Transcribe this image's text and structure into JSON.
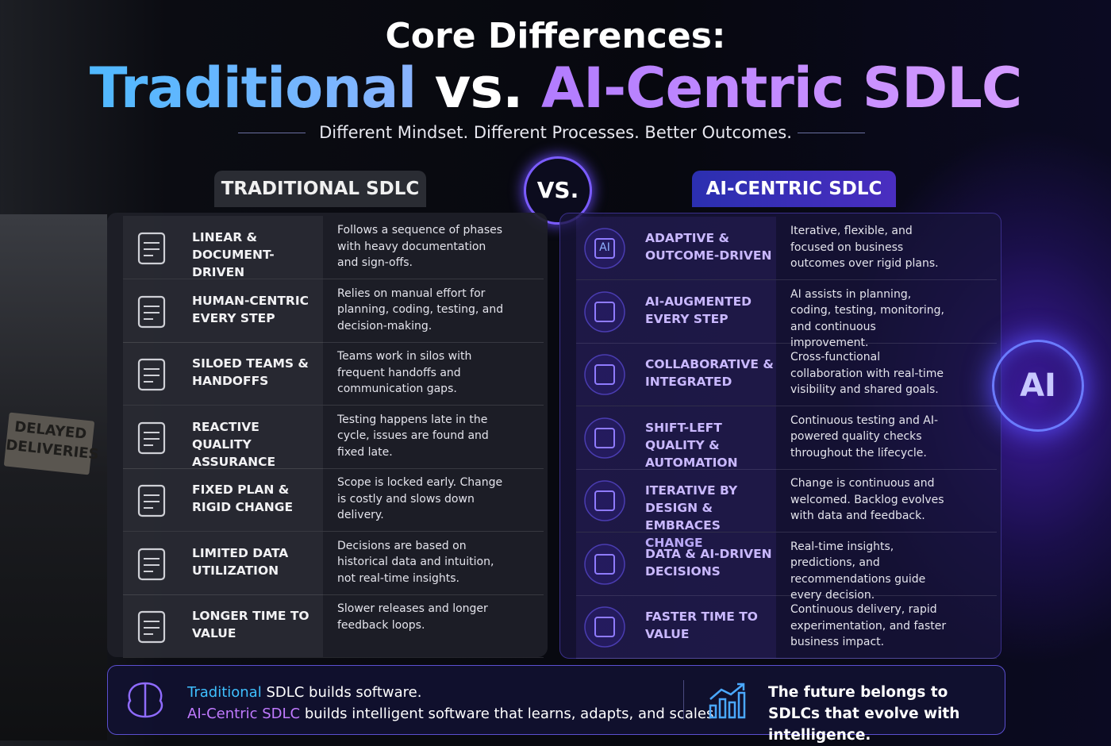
{
  "header": {
    "title": "Core Differences:",
    "title_left": "Traditional",
    "title_vs": "vs.",
    "title_right": "AI-Centric SDLC",
    "subtitle": "Different Mindset. Different Processes. Better Outcomes."
  },
  "left": {
    "label": "TRADITIONAL SDLC",
    "rows": [
      {
        "heading": "LINEAR & DOCUMENT-DRIVEN",
        "text": "Follows a sequence of phases with heavy documentation and sign-offs."
      },
      {
        "heading": "HUMAN-CENTRIC EVERY STEP",
        "text": "Relies on manual effort for planning, coding, testing, and decision-making."
      },
      {
        "heading": "SILOED TEAMS & HANDOFFS",
        "text": "Teams work in silos with frequent handoffs and communication gaps."
      },
      {
        "heading": "REACTIVE QUALITY ASSURANCE",
        "text": "Testing happens late in the cycle, issues are found and fixed late."
      },
      {
        "heading": "FIXED PLAN & RIGID CHANGE",
        "text": "Scope is locked early. Change is costly and slows down delivery."
      },
      {
        "heading": "LIMITED DATA UTILIZATION",
        "text": "Decisions are based on historical data and intuition, not real-time insights."
      },
      {
        "heading": "LONGER TIME TO VALUE",
        "text": "Slower releases and longer feedback loops."
      }
    ]
  },
  "vs": "VS.",
  "right": {
    "label": "AI-CENTRIC SDLC",
    "icon_text": "AI",
    "rows": [
      {
        "heading": "ADAPTIVE & OUTCOME-DRIVEN",
        "text": "Iterative, flexible, and focused on business outcomes over rigid plans."
      },
      {
        "heading": "AI-AUGMENTED EVERY STEP",
        "text": "AI assists in planning, coding, testing, monitoring, and continuous improvement."
      },
      {
        "heading": "COLLABORATIVE & INTEGRATED",
        "text": "Cross-functional collaboration with real-time visibility and shared goals."
      },
      {
        "heading": "SHIFT-LEFT QUALITY & AUTOMATION",
        "text": "Continuous testing and AI-powered quality checks throughout the lifecycle."
      },
      {
        "heading": "ITERATIVE BY DESIGN & EMBRACES CHANGE",
        "text": "Change is continuous and welcomed. Backlog evolves with data and feedback."
      },
      {
        "heading": "DATA & AI-DRIVEN DECISIONS",
        "text": "Real-time insights, predictions, and recommendations guide every decision."
      },
      {
        "heading": "FASTER TIME TO VALUE",
        "text": "Continuous delivery, rapid experimentation, and faster business impact."
      }
    ]
  },
  "sign": "DELAYED DELIVERIES",
  "orb": "AI",
  "footer": {
    "left_term": "Traditional",
    "left_text": "SDLC builds software.",
    "right_term": "AI-Centric SDLC",
    "right_text": "builds intelligent software that learns, adapts, and scales.",
    "tagline": "The future belongs to SDLCs that evolve with intelligence."
  }
}
